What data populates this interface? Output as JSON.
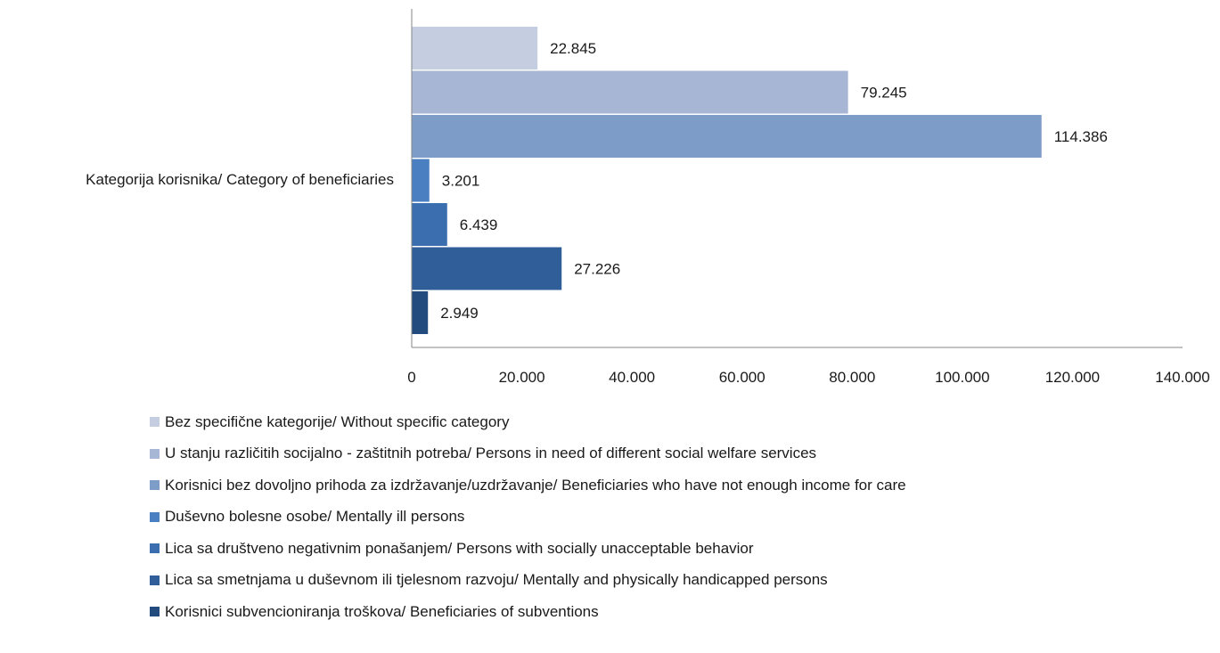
{
  "chart_data": {
    "type": "bar",
    "orientation": "horizontal",
    "categories": [
      "Kategorija korisnika/ Category of beneficiaries"
    ],
    "series": [
      {
        "name": "Bez specifične kategorije/ Without specific category",
        "values": [
          22845
        ],
        "label": "22.845",
        "color": "#c5cee0"
      },
      {
        "name": "U stanju različitih socijalno - zaštitnih potreba/ Persons in need of different social welfare services",
        "values": [
          79245
        ],
        "label": "79.245",
        "color": "#a7b6d5"
      },
      {
        "name": "Korisnici bez dovoljno prihoda za izdržavanje/uzdržavanje/ Beneficiaries who have not enough income for care",
        "values": [
          114386
        ],
        "label": "114.386",
        "color": "#7d9cc8"
      },
      {
        "name": "Duševno bolesne osobe/ Mentally ill persons",
        "values": [
          3201
        ],
        "label": "3.201",
        "color": "#4a7fc1"
      },
      {
        "name": "Lica sa društveno negativnim ponašanjem/ Persons with socially unacceptable behavior",
        "values": [
          6439
        ],
        "label": "6.439",
        "color": "#3b6eae"
      },
      {
        "name": "Lica sa smetnjama u duševnom ili tjelesnom razvoju/ Mentally and physically handicapped persons",
        "values": [
          27226
        ],
        "label": "27.226",
        "color": "#2f5e98"
      },
      {
        "name": "Korisnici subvencioniranja troškova/ Beneficiaries of subventions",
        "values": [
          2949
        ],
        "label": "2.949",
        "color": "#234b7e"
      }
    ],
    "xlim": [
      0,
      140000
    ],
    "xticks": [
      0,
      20000,
      40000,
      60000,
      80000,
      100000,
      120000,
      140000
    ],
    "xtick_labels": [
      "0",
      "20.000",
      "40.000",
      "60.000",
      "80.000",
      "100.000",
      "120.000",
      "140.000"
    ],
    "grid": false,
    "legend_position": "bottom"
  }
}
